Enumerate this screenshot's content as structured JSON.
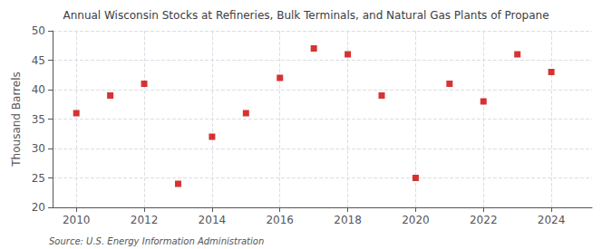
{
  "chart_data": {
    "type": "scatter",
    "title": "Annual Wisconsin Stocks at Refineries, Bulk Terminals, and Natural Gas Plants of Propane",
    "ylabel": "Thousand Barrels",
    "annotations": [
      "Source: U.S. Energy Information Administration"
    ],
    "x": [
      2010,
      2011,
      2012,
      2013,
      2014,
      2015,
      2016,
      2017,
      2018,
      2019,
      2020,
      2021,
      2022,
      2023,
      2024
    ],
    "values": [
      36,
      39,
      41,
      24,
      32,
      36,
      42,
      47,
      46,
      39,
      25,
      41,
      38,
      46,
      43
    ],
    "color": "#cc0000",
    "marker": "square",
    "xlim": [
      2009.3,
      2025.2
    ],
    "ylim": [
      20,
      50
    ],
    "xticks": [
      2010,
      2012,
      2014,
      2016,
      2018,
      2020,
      2022,
      2024
    ],
    "yticks": [
      20,
      25,
      30,
      35,
      40,
      45,
      50
    ],
    "grid": true
  }
}
